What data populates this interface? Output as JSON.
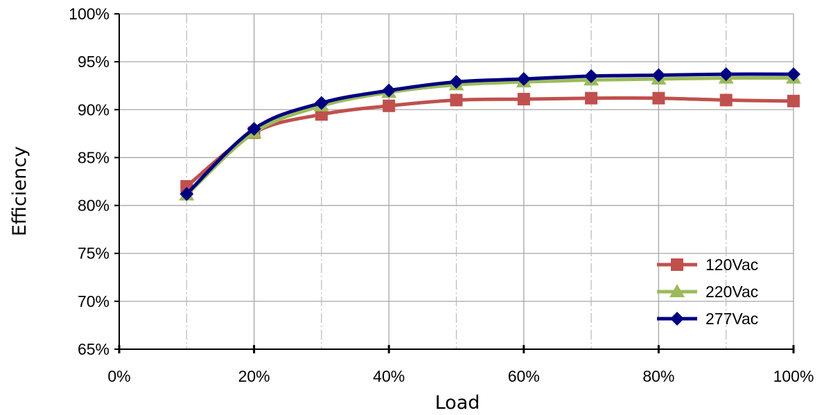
{
  "chart_data": {
    "type": "line",
    "xlabel": "Load",
    "ylabel": "Efficiency",
    "xlim": [
      0,
      100
    ],
    "ylim": [
      65,
      100
    ],
    "x_ticks": [
      0,
      10,
      20,
      30,
      40,
      50,
      60,
      70,
      80,
      90,
      100
    ],
    "x_tick_labels": [
      "0%",
      "",
      "20%",
      "",
      "40%",
      "",
      "60%",
      "",
      "80%",
      "",
      "100%"
    ],
    "y_ticks": [
      65,
      70,
      75,
      80,
      85,
      90,
      95,
      100
    ],
    "y_tick_labels": [
      "65%",
      "70%",
      "75%",
      "80%",
      "85%",
      "90%",
      "95%",
      "100%"
    ],
    "grid": true,
    "legend_position": "bottom-right",
    "x": [
      10,
      20,
      30,
      40,
      50,
      60,
      70,
      80,
      90,
      100
    ],
    "series": [
      {
        "name": "120Vac",
        "color": "#c0504d",
        "marker": "square",
        "values": [
          82.0,
          87.6,
          89.5,
          90.4,
          91.0,
          91.1,
          91.2,
          91.2,
          91.0,
          90.9
        ]
      },
      {
        "name": "220Vac",
        "color": "#9bbb59",
        "marker": "triangle",
        "values": [
          81.1,
          87.6,
          90.4,
          91.8,
          92.6,
          92.9,
          93.1,
          93.2,
          93.3,
          93.3
        ]
      },
      {
        "name": "277Vac",
        "color": "#000080",
        "marker": "diamond",
        "values": [
          81.2,
          88.0,
          90.7,
          92.0,
          92.9,
          93.2,
          93.5,
          93.6,
          93.7,
          93.7
        ]
      }
    ]
  }
}
